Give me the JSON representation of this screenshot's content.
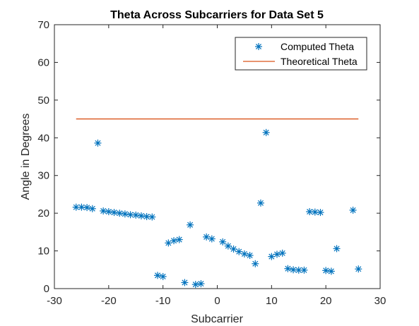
{
  "chart_data": {
    "type": "scatter",
    "title": "Theta Across Subcarriers for Data Set 5",
    "xlabel": "Subcarrier",
    "ylabel": "Angle in Degrees",
    "xlim": [
      -30,
      30
    ],
    "ylim": [
      0,
      70
    ],
    "xticks": [
      -30,
      -20,
      -10,
      0,
      10,
      20,
      30
    ],
    "yticks": [
      0,
      10,
      20,
      30,
      40,
      50,
      60,
      70
    ],
    "grid": false,
    "legend_position": "top-right",
    "series": [
      {
        "name": "Computed Theta",
        "kind": "markers",
        "marker": "asterisk",
        "color": "#0072BD",
        "x": [
          -26,
          -25,
          -24,
          -23,
          -22,
          -21,
          -20,
          -19,
          -18,
          -17,
          -16,
          -15,
          -14,
          -13,
          -12,
          -11,
          -10,
          -9,
          -8,
          -7,
          -6,
          -5,
          -4,
          -3,
          -2,
          -1,
          1,
          2,
          3,
          4,
          5,
          6,
          7,
          8,
          9,
          10,
          11,
          12,
          13,
          14,
          15,
          16,
          17,
          18,
          19,
          20,
          21,
          22,
          25,
          26
        ],
        "y": [
          21.6,
          21.6,
          21.5,
          21.2,
          38.6,
          20.6,
          20.4,
          20.2,
          20.0,
          19.8,
          19.6,
          19.5,
          19.3,
          19.1,
          19.0,
          3.5,
          3.2,
          12.1,
          12.7,
          13.0,
          1.6,
          16.9,
          1.1,
          1.3,
          13.7,
          13.2,
          12.4,
          11.3,
          10.5,
          9.8,
          9.2,
          8.8,
          6.6,
          22.7,
          41.4,
          8.5,
          9.1,
          9.4,
          5.3,
          5.0,
          4.9,
          4.9,
          20.4,
          20.3,
          20.2,
          4.8,
          4.6,
          10.6,
          20.8,
          5.2
        ]
      },
      {
        "name": "Theoretical Theta",
        "kind": "line",
        "color": "#D95319",
        "x": [
          -26,
          26
        ],
        "y": [
          45,
          45
        ]
      }
    ]
  }
}
